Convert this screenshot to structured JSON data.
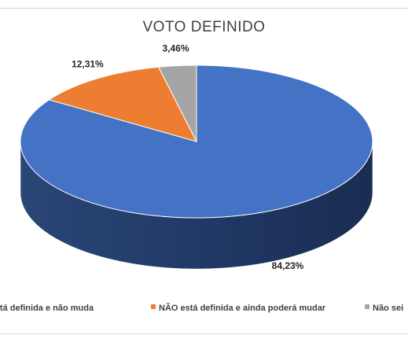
{
  "chart_data": {
    "type": "pie",
    "title": "VOTO DEFINIDO",
    "slices": [
      {
        "label": "SIM, está definida e não muda",
        "value": 84.23,
        "display": "84,23%",
        "color": "#4472c4"
      },
      {
        "label": "NÃO está definida e ainda poderá mudar",
        "value": 12.31,
        "display": "12,31%",
        "color": "#ed7d31"
      },
      {
        "label": "Não sei",
        "value": 3.46,
        "display": "3,46%",
        "color": "#a5a5a5"
      }
    ],
    "legend_position": "bottom"
  }
}
